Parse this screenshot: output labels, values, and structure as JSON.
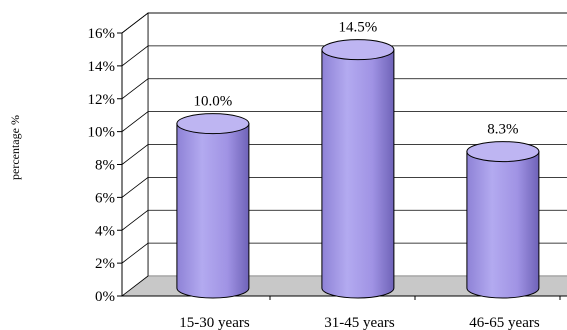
{
  "chart_data": {
    "type": "bar",
    "style": "3d-cylinder",
    "categories": [
      "15-30 years",
      "31-45 years",
      "46-65 years"
    ],
    "values": [
      10.0,
      14.5,
      8.3
    ],
    "data_labels": [
      "10.0%",
      "14.5%",
      "8.3%"
    ],
    "ylabel": "percentage %",
    "yticks": [
      "0%",
      "2%",
      "4%",
      "6%",
      "8%",
      "10%",
      "12%",
      "14%",
      "16%"
    ],
    "ylim": [
      0,
      16
    ],
    "grid": true,
    "colors": {
      "bar": "#a59ae6",
      "bar_dark": "#7d70c8",
      "bar_top": "#beb5f2",
      "wall": "#c8c8c8"
    }
  }
}
